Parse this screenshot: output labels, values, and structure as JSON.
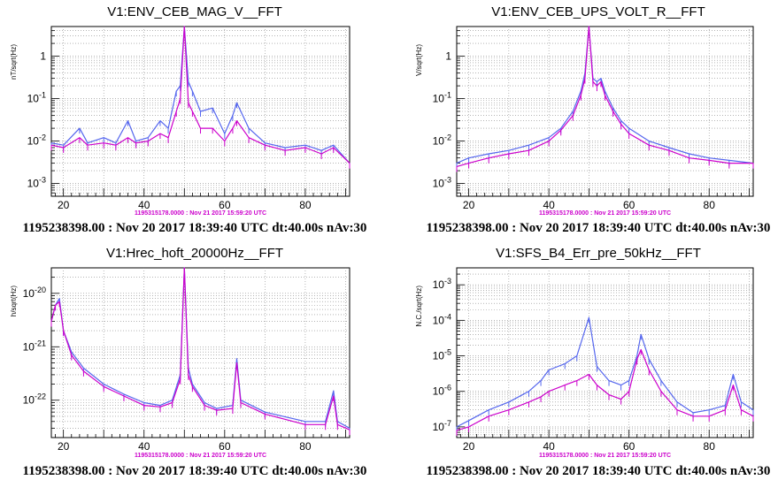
{
  "chart_data": [
    {
      "type": "line",
      "title": "V1:ENV_CEB_MAG_V__FFT",
      "ylabel": "nT/sqrt(Hz)",
      "xlim": [
        17,
        91
      ],
      "ylog": true,
      "ylim": [
        0.0005,
        5
      ],
      "x_ticks": [
        20,
        40,
        60,
        80
      ],
      "y_ticks": [
        {
          "v": 0.001,
          "label": "10^-3"
        },
        {
          "v": 0.01,
          "label": "10^-2"
        },
        {
          "v": 0.1,
          "label": "10^-1"
        },
        {
          "v": 1,
          "label": "1"
        }
      ],
      "grid": true,
      "reference_label": "1195315178.0000 : Nov 21 2017 15:59:20 UTC",
      "footer": "1195238398.00 : Nov 20 2017 18:39:40 UTC dt:40.00s nAv:30",
      "series": [
        {
          "color": "#5566ee",
          "values": [
            [
              17,
              0.009
            ],
            [
              20,
              0.008
            ],
            [
              24,
              0.02
            ],
            [
              26,
              0.009
            ],
            [
              30,
              0.012
            ],
            [
              33,
              0.009
            ],
            [
              36,
              0.03
            ],
            [
              38,
              0.01
            ],
            [
              41,
              0.012
            ],
            [
              44,
              0.03
            ],
            [
              46,
              0.02
            ],
            [
              48,
              0.15
            ],
            [
              49,
              0.2
            ],
            [
              50,
              5
            ],
            [
              51,
              0.25
            ],
            [
              52,
              0.15
            ],
            [
              54,
              0.05
            ],
            [
              57,
              0.06
            ],
            [
              60,
              0.015
            ],
            [
              62,
              0.04
            ],
            [
              63,
              0.08
            ],
            [
              66,
              0.02
            ],
            [
              70,
              0.009
            ],
            [
              75,
              0.007
            ],
            [
              80,
              0.008
            ],
            [
              84,
              0.006
            ],
            [
              87,
              0.008
            ],
            [
              91,
              0.003
            ]
          ]
        },
        {
          "color": "#cc00cc",
          "values": [
            [
              17,
              0.008
            ],
            [
              20,
              0.007
            ],
            [
              24,
              0.012
            ],
            [
              26,
              0.008
            ],
            [
              30,
              0.009
            ],
            [
              33,
              0.008
            ],
            [
              36,
              0.012
            ],
            [
              38,
              0.009
            ],
            [
              41,
              0.01
            ],
            [
              44,
              0.015
            ],
            [
              46,
              0.012
            ],
            [
              48,
              0.05
            ],
            [
              49,
              0.1
            ],
            [
              50,
              5
            ],
            [
              51,
              0.08
            ],
            [
              52,
              0.05
            ],
            [
              54,
              0.02
            ],
            [
              57,
              0.02
            ],
            [
              60,
              0.01
            ],
            [
              62,
              0.02
            ],
            [
              63,
              0.03
            ],
            [
              66,
              0.012
            ],
            [
              70,
              0.008
            ],
            [
              75,
              0.006
            ],
            [
              80,
              0.007
            ],
            [
              84,
              0.005
            ],
            [
              87,
              0.007
            ],
            [
              91,
              0.003
            ]
          ]
        }
      ]
    },
    {
      "type": "line",
      "title": "V1:ENV_CEB_UPS_VOLT_R__FFT",
      "ylabel": "V/sqrt(Hz)",
      "xlim": [
        17,
        91
      ],
      "ylog": true,
      "ylim": [
        0.0005,
        5
      ],
      "x_ticks": [
        20,
        40,
        60,
        80
      ],
      "y_ticks": [
        {
          "v": 0.001,
          "label": "10^-3"
        },
        {
          "v": 0.01,
          "label": "10^-2"
        },
        {
          "v": 0.1,
          "label": "10^-1"
        },
        {
          "v": 1,
          "label": "1"
        }
      ],
      "grid": true,
      "reference_label": "1195315178.0000 : Nov 21 2017 15:59:20 UTC",
      "footer": "1195238398.00 : Nov 20 2017 18:39:40 UTC dt:40.00s nAv:30",
      "series": [
        {
          "color": "#5566ee",
          "values": [
            [
              17,
              0.003
            ],
            [
              20,
              0.004
            ],
            [
              25,
              0.005
            ],
            [
              30,
              0.006
            ],
            [
              35,
              0.008
            ],
            [
              40,
              0.012
            ],
            [
              43,
              0.02
            ],
            [
              46,
              0.05
            ],
            [
              48,
              0.15
            ],
            [
              49,
              0.4
            ],
            [
              50,
              5
            ],
            [
              51,
              0.3
            ],
            [
              52,
              0.25
            ],
            [
              53,
              0.3
            ],
            [
              54,
              0.15
            ],
            [
              56,
              0.06
            ],
            [
              58,
              0.03
            ],
            [
              60,
              0.02
            ],
            [
              65,
              0.01
            ],
            [
              70,
              0.007
            ],
            [
              75,
              0.005
            ],
            [
              80,
              0.004
            ],
            [
              85,
              0.0035
            ],
            [
              91,
              0.003
            ]
          ]
        },
        {
          "color": "#cc00cc",
          "values": [
            [
              17,
              0.0025
            ],
            [
              20,
              0.003
            ],
            [
              25,
              0.004
            ],
            [
              30,
              0.005
            ],
            [
              35,
              0.006
            ],
            [
              40,
              0.01
            ],
            [
              43,
              0.018
            ],
            [
              46,
              0.04
            ],
            [
              48,
              0.12
            ],
            [
              49,
              0.3
            ],
            [
              50,
              5
            ],
            [
              51,
              0.25
            ],
            [
              52,
              0.2
            ],
            [
              53,
              0.25
            ],
            [
              54,
              0.12
            ],
            [
              56,
              0.05
            ],
            [
              58,
              0.025
            ],
            [
              60,
              0.015
            ],
            [
              65,
              0.008
            ],
            [
              70,
              0.006
            ],
            [
              75,
              0.004
            ],
            [
              80,
              0.0035
            ],
            [
              85,
              0.003
            ],
            [
              91,
              0.003
            ]
          ]
        }
      ]
    },
    {
      "type": "line",
      "title": "V1:Hrec_hoft_20000Hz__FFT",
      "ylabel": "h/sqrt(Hz)",
      "xlim": [
        17,
        91
      ],
      "ylog": true,
      "ylim": [
        2e-23,
        3e-20
      ],
      "x_ticks": [
        20,
        40,
        60,
        80
      ],
      "y_ticks": [
        {
          "v": 1e-22,
          "label": "10^-22"
        },
        {
          "v": 1e-21,
          "label": "10^-21"
        },
        {
          "v": 1e-20,
          "label": "10^-20"
        }
      ],
      "grid": true,
      "reference_label": "1195315178.0000 : Nov 21 2017 15:59:20 UTC",
      "footer": "1195238398.00 : Nov 20 2017 18:39:40 UTC dt:40.00s nAv:30",
      "series": [
        {
          "color": "#5566ee",
          "values": [
            [
              17,
              3e-21
            ],
            [
              18,
              6e-21
            ],
            [
              19,
              8e-21
            ],
            [
              20,
              2e-21
            ],
            [
              22,
              8e-22
            ],
            [
              25,
              4e-22
            ],
            [
              30,
              2e-22
            ],
            [
              35,
              1.3e-22
            ],
            [
              40,
              9e-23
            ],
            [
              44,
              8e-23
            ],
            [
              47,
              1e-22
            ],
            [
              49,
              3e-22
            ],
            [
              50,
              3e-20
            ],
            [
              51,
              4e-22
            ],
            [
              52,
              2e-22
            ],
            [
              55,
              9e-23
            ],
            [
              58,
              7e-23
            ],
            [
              62,
              8e-23
            ],
            [
              63,
              6e-22
            ],
            [
              64,
              1e-22
            ],
            [
              70,
              6e-23
            ],
            [
              80,
              4e-23
            ],
            [
              85,
              4e-23
            ],
            [
              87,
              1.5e-22
            ],
            [
              88,
              4e-23
            ],
            [
              91,
              3e-23
            ]
          ]
        },
        {
          "color": "#cc00cc",
          "values": [
            [
              17,
              3e-21
            ],
            [
              18,
              6e-21
            ],
            [
              19,
              7e-21
            ],
            [
              20,
              2e-21
            ],
            [
              22,
              7e-22
            ],
            [
              25,
              3.5e-22
            ],
            [
              30,
              1.8e-22
            ],
            [
              35,
              1.2e-22
            ],
            [
              40,
              8e-23
            ],
            [
              44,
              7.5e-23
            ],
            [
              47,
              9e-23
            ],
            [
              49,
              2.5e-22
            ],
            [
              50,
              3e-20
            ],
            [
              51,
              3e-22
            ],
            [
              52,
              1.8e-22
            ],
            [
              55,
              8e-23
            ],
            [
              58,
              6.5e-23
            ],
            [
              62,
              7e-23
            ],
            [
              63,
              5e-22
            ],
            [
              64,
              9e-23
            ],
            [
              70,
              5.5e-23
            ],
            [
              80,
              3.5e-23
            ],
            [
              85,
              3.5e-23
            ],
            [
              87,
              1.2e-22
            ],
            [
              88,
              3.5e-23
            ],
            [
              91,
              2.8e-23
            ]
          ]
        }
      ]
    },
    {
      "type": "line",
      "title": "V1:SFS_B4_Err_pre_50kHz__FFT",
      "ylabel": "N.C./sqrt(Hz)",
      "xlim": [
        17,
        91
      ],
      "ylog": true,
      "ylim": [
        5e-08,
        0.003
      ],
      "x_ticks": [
        20,
        40,
        60,
        80
      ],
      "y_ticks": [
        {
          "v": 1e-07,
          "label": "10^-7"
        },
        {
          "v": 1e-06,
          "label": "10^-6"
        },
        {
          "v": 1e-05,
          "label": "10^-5"
        },
        {
          "v": 0.0001,
          "label": "10^-4"
        },
        {
          "v": 0.001,
          "label": "10^-3"
        }
      ],
      "grid": true,
      "reference_label": "1195315178.0000 : Nov 21 2017 15:59:20 UTC",
      "footer": "1195238398.00 : Nov 20 2017 18:39:40 UTC dt:40.00s nAv:30",
      "series": [
        {
          "color": "#5566ee",
          "values": [
            [
              17,
              1e-07
            ],
            [
              20,
              1.5e-07
            ],
            [
              25,
              3e-07
            ],
            [
              30,
              5e-07
            ],
            [
              35,
              1e-06
            ],
            [
              38,
              2e-06
            ],
            [
              40,
              4e-06
            ],
            [
              44,
              6e-06
            ],
            [
              47,
              1e-05
            ],
            [
              50,
              0.00012
            ],
            [
              52,
              5e-06
            ],
            [
              55,
              2e-06
            ],
            [
              58,
              1.5e-06
            ],
            [
              60,
              2e-06
            ],
            [
              62,
              1e-05
            ],
            [
              63,
              4e-05
            ],
            [
              65,
              8e-06
            ],
            [
              68,
              2e-06
            ],
            [
              72,
              5e-07
            ],
            [
              76,
              2.5e-07
            ],
            [
              80,
              3e-07
            ],
            [
              84,
              4e-07
            ],
            [
              86,
              3e-06
            ],
            [
              88,
              5e-07
            ],
            [
              91,
              3e-07
            ]
          ]
        },
        {
          "color": "#cc00cc",
          "values": [
            [
              17,
              8e-08
            ],
            [
              20,
              1e-07
            ],
            [
              25,
              2e-07
            ],
            [
              30,
              3e-07
            ],
            [
              35,
              5e-07
            ],
            [
              38,
              7e-07
            ],
            [
              40,
              1e-06
            ],
            [
              44,
              1.5e-06
            ],
            [
              47,
              2e-06
            ],
            [
              50,
              3e-06
            ],
            [
              52,
              1.5e-06
            ],
            [
              55,
              8e-07
            ],
            [
              58,
              6e-07
            ],
            [
              60,
              1e-06
            ],
            [
              62,
              8e-06
            ],
            [
              63,
              1.5e-05
            ],
            [
              65,
              4e-06
            ],
            [
              68,
              1e-06
            ],
            [
              72,
              3e-07
            ],
            [
              76,
              2e-07
            ],
            [
              80,
              2e-07
            ],
            [
              84,
              3e-07
            ],
            [
              86,
              1.5e-06
            ],
            [
              88,
              3e-07
            ],
            [
              91,
              2e-07
            ]
          ]
        }
      ]
    }
  ]
}
